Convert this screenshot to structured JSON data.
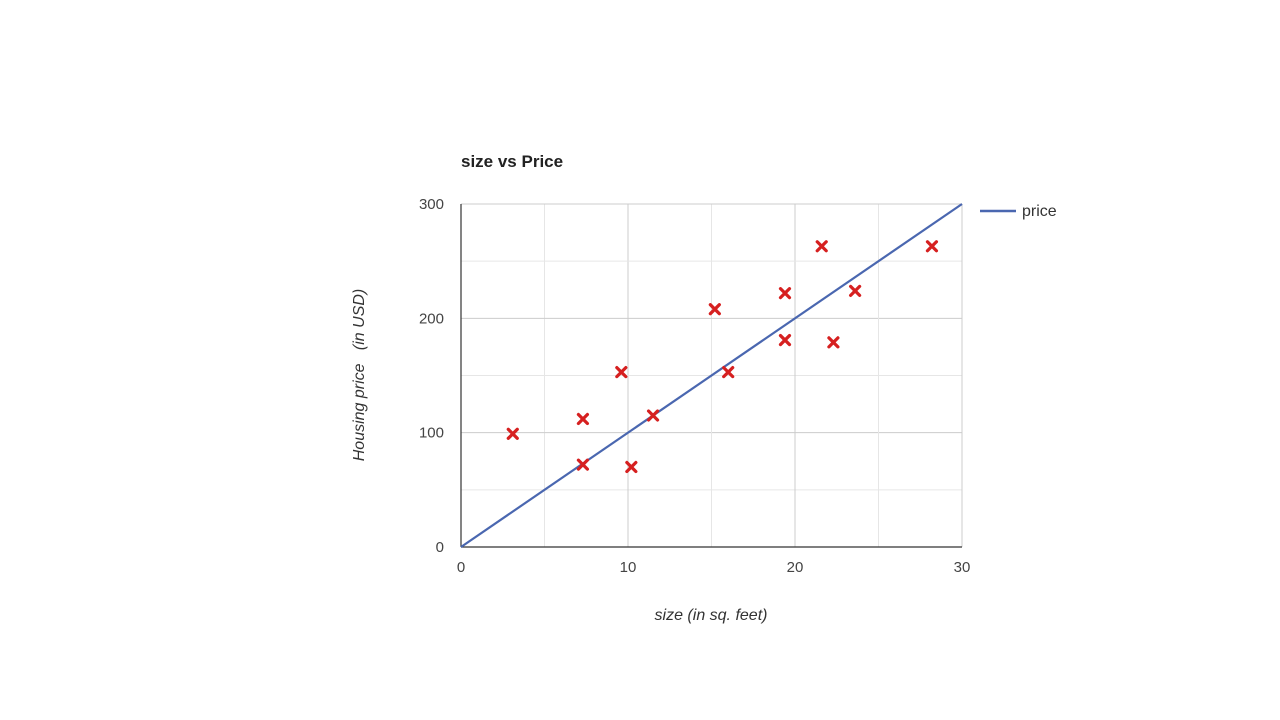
{
  "chart_data": {
    "type": "scatter",
    "title": "size vs Price",
    "xlabel": "size (in sq. feet)",
    "ylabel": "Housing price   (in USD)",
    "xlim": [
      0,
      30
    ],
    "ylim": [
      0,
      300
    ],
    "x_ticks": [
      "0",
      "10",
      "20",
      "30"
    ],
    "y_ticks": [
      "0",
      "100",
      "200",
      "300"
    ],
    "grid": true,
    "legend_position": "top-right",
    "points": [
      {
        "x": 3.1,
        "y": 99
      },
      {
        "x": 7.3,
        "y": 112
      },
      {
        "x": 7.3,
        "y": 72
      },
      {
        "x": 9.6,
        "y": 153
      },
      {
        "x": 10.2,
        "y": 70
      },
      {
        "x": 11.5,
        "y": 115
      },
      {
        "x": 15.2,
        "y": 208
      },
      {
        "x": 16.0,
        "y": 153
      },
      {
        "x": 19.4,
        "y": 222
      },
      {
        "x": 19.4,
        "y": 181
      },
      {
        "x": 21.6,
        "y": 263
      },
      {
        "x": 22.3,
        "y": 179
      },
      {
        "x": 23.6,
        "y": 224
      },
      {
        "x": 28.2,
        "y": 263
      }
    ],
    "series": [
      {
        "name": "price",
        "type": "line",
        "x": [
          0,
          30
        ],
        "y": [
          0,
          300
        ],
        "color": "#4a67b0"
      }
    ],
    "marker_color": "#d62020",
    "line_color": "#4a67b0"
  }
}
